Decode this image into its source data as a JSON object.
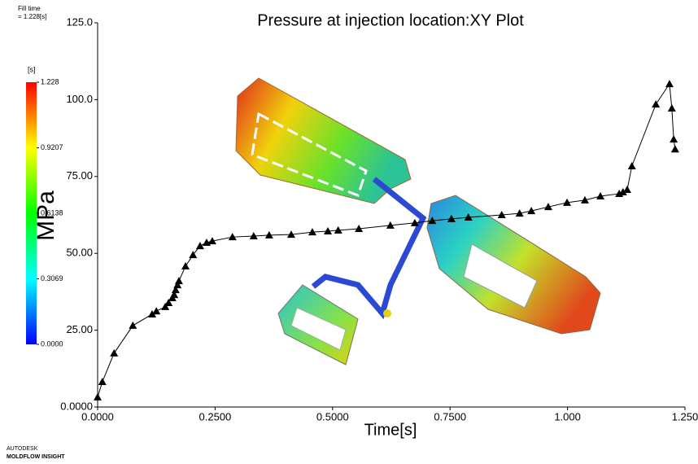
{
  "chart_data": {
    "type": "line",
    "title": "Pressure at injection location:XY Plot",
    "xlabel": "Time[s]",
    "ylabel": "MPa",
    "header": [
      "Fill time",
      "= 1.228[s]"
    ],
    "footer": [
      "AUTODESK",
      "MOLDFLOW INSIGHT"
    ],
    "color": "#000000",
    "marker": "triangle",
    "xlim": [
      0,
      1.25
    ],
    "ylim": [
      0,
      125
    ],
    "xticks": [
      {
        "value": 0,
        "label": "0.0000"
      },
      {
        "value": 0.25,
        "label": "0.2500"
      },
      {
        "value": 0.5,
        "label": "0.5000"
      },
      {
        "value": 0.75,
        "label": "0.7500"
      },
      {
        "value": 1.0,
        "label": "1.000"
      },
      {
        "value": 1.25,
        "label": "1.250"
      }
    ],
    "yticks": [
      {
        "value": 0,
        "label": "0.0000"
      },
      {
        "value": 25,
        "label": "25.00"
      },
      {
        "value": 50,
        "label": "50.00"
      },
      {
        "value": 75,
        "label": "75.00"
      },
      {
        "value": 100,
        "label": "100.0"
      },
      {
        "value": 125,
        "label": "125.0"
      }
    ],
    "x": [
      0.0,
      0.01,
      0.035,
      0.075,
      0.116,
      0.125,
      0.144,
      0.151,
      0.159,
      0.163,
      0.166,
      0.17,
      0.173,
      0.187,
      0.203,
      0.218,
      0.232,
      0.244,
      0.287,
      0.332,
      0.365,
      0.412,
      0.457,
      0.49,
      0.512,
      0.556,
      0.623,
      0.675,
      0.712,
      0.753,
      0.789,
      0.86,
      0.898,
      0.923,
      0.959,
      0.999,
      1.037,
      1.07,
      1.11,
      1.118,
      1.127,
      1.137,
      1.188,
      1.217,
      1.222,
      1.226,
      1.229
    ],
    "values": [
      3.2,
      8.2,
      17.5,
      26.5,
      30.2,
      31.2,
      32.6,
      33.9,
      35.5,
      36.5,
      38.1,
      39.7,
      41.0,
      45.8,
      49.5,
      52.4,
      53.5,
      54.0,
      55.3,
      55.6,
      55.9,
      56.1,
      56.9,
      57.2,
      57.5,
      58.0,
      59.1,
      59.9,
      60.6,
      61.2,
      61.7,
      62.5,
      63.0,
      63.8,
      65.1,
      66.5,
      67.3,
      68.6,
      69.4,
      69.9,
      70.7,
      78.4,
      98.5,
      105.1,
      97.2,
      87.1,
      83.9
    ],
    "colorbar": {
      "unit": "[s]",
      "clim": [
        0,
        1.228
      ],
      "colors": [
        "#0000ff",
        "#00ffff",
        "#00ff00",
        "#ffff00",
        "#ff0000"
      ],
      "ticks": [
        {
          "value": 1.228,
          "label": "1.228"
        },
        {
          "value": 0.9207,
          "label": "0.9207"
        },
        {
          "value": 0.6138,
          "label": "0.6138"
        },
        {
          "value": 0.3069,
          "label": "0.3069"
        },
        {
          "value": 0,
          "label": "0.0000"
        }
      ]
    }
  }
}
